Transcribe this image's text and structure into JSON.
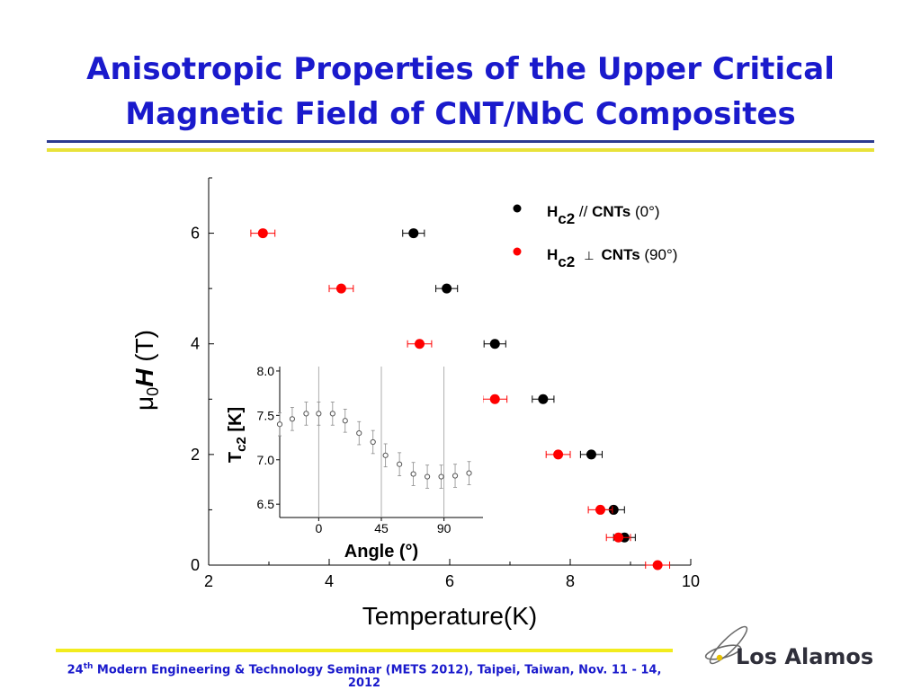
{
  "slide": {
    "title_line1": "Anisotropic Properties of the Upper Critical",
    "title_line2": "Magnetic Field of CNT/NbC Composites",
    "footer_ordinal": "24",
    "footer_sup": "th",
    "footer_text": " Modern Engineering & Technology Seminar (METS 2012), Taipei, Taiwan, Nov. 11 - 14, 2012",
    "logo_text": "Los Alamos",
    "colors": {
      "title": "#1a1acc",
      "rule_blue": "#2b3a8f",
      "rule_yellow": "#e8e23a",
      "parallel": "#000000",
      "perpendicular": "#ff0000"
    }
  },
  "chart_data": [
    {
      "type": "scatter",
      "xlabel": "Temperature(K)",
      "ylabel": "μ0H (T)",
      "xlim": [
        2,
        10
      ],
      "ylim": [
        0,
        7
      ],
      "xticks": [
        2,
        4,
        6,
        8,
        10
      ],
      "yticks": [
        0,
        2,
        4,
        6
      ],
      "legend_position": "top-right",
      "series": [
        {
          "name": "Hc2 // CNTs (0°)",
          "legend_sub": "H",
          "legend_subscript": "c2",
          "legend_rel": " // ",
          "legend_bold": "CNTs",
          "legend_paren": " (0°)",
          "color": "#000000",
          "points": [
            [
              5.4,
              6
            ],
            [
              5.95,
              5
            ],
            [
              6.75,
              4
            ],
            [
              7.55,
              3
            ],
            [
              8.35,
              2
            ],
            [
              8.72,
              1
            ],
            [
              8.9,
              0.5
            ]
          ],
          "xerr": 0.18
        },
        {
          "name": "Hc2 ⊥ CNTs (90°)",
          "legend_sub": "H",
          "legend_subscript": "c2",
          "legend_rel": "⊥",
          "legend_bold": "CNTs",
          "legend_paren": " (90°)",
          "color": "#ff0000",
          "points": [
            [
              2.9,
              6
            ],
            [
              4.2,
              5
            ],
            [
              5.5,
              4
            ],
            [
              6.75,
              3
            ],
            [
              7.8,
              2
            ],
            [
              8.5,
              1
            ],
            [
              8.8,
              0.5
            ],
            [
              9.45,
              0
            ]
          ],
          "xerr": 0.2
        }
      ]
    },
    {
      "type": "scatter",
      "xlabel": "Angle (°)",
      "ylabel": "Tc2 [K]",
      "xlim": [
        -28,
        118
      ],
      "ylim": [
        6.35,
        8.05
      ],
      "xticks": [
        0,
        45,
        90
      ],
      "yticks": [
        6.5,
        7.0,
        7.5,
        8.0
      ],
      "ytick_labels": [
        "6.5",
        "7.0",
        "7.5",
        "8.0"
      ],
      "vlines": [
        0,
        45,
        90
      ],
      "series": [
        {
          "marker": "open-circle",
          "color": "#555555",
          "x": [
            -28,
            -19,
            -9,
            0,
            10,
            19,
            29,
            39,
            48,
            58,
            68,
            78,
            88,
            98,
            108
          ],
          "y": [
            7.4,
            7.46,
            7.52,
            7.52,
            7.52,
            7.44,
            7.3,
            7.2,
            7.05,
            6.95,
            6.84,
            6.81,
            6.81,
            6.82,
            6.85
          ],
          "yerr": 0.13
        }
      ]
    }
  ]
}
